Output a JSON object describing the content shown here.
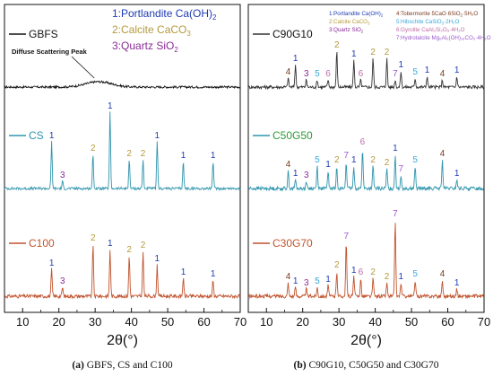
{
  "colors": {
    "1": "#1f3bb3",
    "2": "#b49a3c",
    "3": "#8a2b98",
    "4": "#7a3a1e",
    "5": "#3aa7d9",
    "6": "#c06aa8",
    "7": "#9b59d0"
  },
  "chart_data": [
    {
      "type": "line",
      "xlabel": "2θ(°)",
      "xlim": [
        5,
        70
      ],
      "xticks": [
        10,
        20,
        30,
        40,
        50,
        60,
        70
      ],
      "caption_bold": "(a)",
      "caption_text": " GBFS, CS and C100",
      "legend": [
        {
          "num": "1",
          "text": "1:Portlandite Ca(OH)",
          "sub": "2"
        },
        {
          "num": "2",
          "text": "2:Calcite CaCO",
          "sub": "3"
        },
        {
          "num": "3",
          "text": "3:Quartz SiO",
          "sub": "2"
        }
      ],
      "annotation": "Diffuse Scattering Peak",
      "series": [
        {
          "name": "GBFS",
          "color": "#111111",
          "name_color": "#111111",
          "baseline": 0.0,
          "hump": {
            "center": 31,
            "width": 5,
            "height": 6
          },
          "noise": 1.2,
          "peaks": []
        },
        {
          "name": "CS",
          "color": "#2f95ad",
          "name_color": "#2f95ad",
          "baseline": 0.0,
          "noise": 1.5,
          "peaks": [
            {
              "x": 18.0,
              "h": 52,
              "label": "1"
            },
            {
              "x": 21.0,
              "h": 8,
              "label": "3"
            },
            {
              "x": 29.4,
              "h": 38,
              "label": "2"
            },
            {
              "x": 34.1,
              "h": 85,
              "label": "1"
            },
            {
              "x": 39.4,
              "h": 32,
              "label": "2"
            },
            {
              "x": 43.2,
              "h": 32,
              "label": "2"
            },
            {
              "x": 47.1,
              "h": 52,
              "label": "1"
            },
            {
              "x": 54.3,
              "h": 30,
              "label": "1"
            },
            {
              "x": 62.5,
              "h": 30,
              "label": "1"
            }
          ]
        },
        {
          "name": "C100",
          "color": "#c0532d",
          "name_color": "#c0532d",
          "baseline": 0.0,
          "noise": 2.0,
          "peaks": [
            {
              "x": 18.0,
              "h": 30,
              "label": "1"
            },
            {
              "x": 21.0,
              "h": 10,
              "label": "3"
            },
            {
              "x": 29.4,
              "h": 58,
              "label": "2"
            },
            {
              "x": 34.1,
              "h": 52,
              "label": "1"
            },
            {
              "x": 39.4,
              "h": 45,
              "label": "2"
            },
            {
              "x": 43.2,
              "h": 50,
              "label": "2"
            },
            {
              "x": 47.1,
              "h": 35,
              "label": "1"
            },
            {
              "x": 54.3,
              "h": 20,
              "label": "1"
            },
            {
              "x": 62.5,
              "h": 18,
              "label": "1"
            }
          ]
        }
      ]
    },
    {
      "type": "line",
      "xlabel": "2θ(°)",
      "xlim": [
        5,
        70
      ],
      "xticks": [
        10,
        20,
        30,
        40,
        50,
        60,
        70
      ],
      "caption_bold": "(b)",
      "caption_text": " C90G10, C50G50 and C30G70",
      "legend_left": [
        {
          "num": "1",
          "text": "1:Portlandite Ca(OH)",
          "sub": "2"
        },
        {
          "num": "2",
          "text": "2:Calcite CaCO",
          "sub": "3"
        },
        {
          "num": "3",
          "text": "3:Quartz SiO",
          "sub": "2"
        }
      ],
      "legend_right": [
        {
          "num": "4",
          "text": "4:Tobermorite 5CaO·6SiO",
          "sub": "2",
          "tail": "·5H₂O"
        },
        {
          "num": "5",
          "text": "5:Hibschite CaSiO",
          "sub": "3",
          "tail": "·2H₂O"
        },
        {
          "num": "6",
          "text": "6:Gyrolite CaAl₂Si₂O₈·4H₂O",
          "sub": "",
          "tail": ""
        },
        {
          "num": "7",
          "text": "7:Hydrotalcite Mg₆Al₂(OH)₁₆CO₃·4H₂O",
          "sub": "",
          "tail": ""
        }
      ],
      "series": [
        {
          "name": "C90G10",
          "color": "#333333",
          "name_color": "#111111",
          "baseline": 0.0,
          "noise": 1.8,
          "peaks": [
            {
              "x": 16.0,
              "h": 10,
              "label": "4"
            },
            {
              "x": 18.0,
              "h": 25,
              "label": "1"
            },
            {
              "x": 21.0,
              "h": 8,
              "label": "3"
            },
            {
              "x": 24.0,
              "h": 8,
              "label": "5"
            },
            {
              "x": 27.0,
              "h": 8,
              "label": "6"
            },
            {
              "x": 29.4,
              "h": 40,
              "label": "2"
            },
            {
              "x": 34.1,
              "h": 30,
              "label": "1"
            },
            {
              "x": 36.0,
              "h": 8,
              "label": "6"
            },
            {
              "x": 39.4,
              "h": 32,
              "label": "2"
            },
            {
              "x": 43.2,
              "h": 32,
              "label": "2"
            },
            {
              "x": 45.5,
              "h": 8,
              "label": "7"
            },
            {
              "x": 47.1,
              "h": 18,
              "label": "1"
            },
            {
              "x": 51.0,
              "h": 10,
              "label": "5"
            },
            {
              "x": 54.3,
              "h": 12,
              "label": "1"
            },
            {
              "x": 58.5,
              "h": 8,
              "label": "4"
            },
            {
              "x": 62.5,
              "h": 12,
              "label": "1"
            }
          ]
        },
        {
          "name": "C50G50",
          "color": "#2f95ad",
          "name_color": "#2e9a3a",
          "baseline": 0.0,
          "noise": 2.0,
          "peaks": [
            {
              "x": 16.0,
              "h": 20,
              "label": "4"
            },
            {
              "x": 18.0,
              "h": 10,
              "label": "1"
            },
            {
              "x": 21.0,
              "h": 8,
              "label": "3"
            },
            {
              "x": 24.0,
              "h": 25,
              "label": "5"
            },
            {
              "x": 27.0,
              "h": 20,
              "label": "1"
            },
            {
              "x": 29.4,
              "h": 25,
              "label": "2"
            },
            {
              "x": 32.0,
              "h": 30,
              "label": "7"
            },
            {
              "x": 34.1,
              "h": 25,
              "label": "1"
            },
            {
              "x": 36.5,
              "h": 45,
              "label": "6"
            },
            {
              "x": 39.4,
              "h": 25,
              "label": "2"
            },
            {
              "x": 43.2,
              "h": 22,
              "label": "2"
            },
            {
              "x": 45.5,
              "h": 38,
              "label": "1"
            },
            {
              "x": 47.1,
              "h": 15,
              "label": "7"
            },
            {
              "x": 51.0,
              "h": 25,
              "label": "5"
            },
            {
              "x": 58.5,
              "h": 32,
              "label": "4"
            },
            {
              "x": 62.5,
              "h": 10,
              "label": "1"
            }
          ]
        },
        {
          "name": "C30G70",
          "color": "#c0532d",
          "name_color": "#c0532d",
          "baseline": 0.0,
          "noise": 2.0,
          "peaks": [
            {
              "x": 16.0,
              "h": 15,
              "label": "4"
            },
            {
              "x": 18.0,
              "h": 10,
              "label": "1"
            },
            {
              "x": 21.0,
              "h": 8,
              "label": "3"
            },
            {
              "x": 24.0,
              "h": 10,
              "label": "5"
            },
            {
              "x": 27.0,
              "h": 12,
              "label": "1"
            },
            {
              "x": 29.4,
              "h": 28,
              "label": "2"
            },
            {
              "x": 32.0,
              "h": 60,
              "label": "7"
            },
            {
              "x": 34.1,
              "h": 22,
              "label": "1"
            },
            {
              "x": 36.0,
              "h": 20,
              "label": "6"
            },
            {
              "x": 39.4,
              "h": 20,
              "label": "2"
            },
            {
              "x": 43.2,
              "h": 15,
              "label": "2"
            },
            {
              "x": 45.5,
              "h": 85,
              "label": "7"
            },
            {
              "x": 47.1,
              "h": 15,
              "label": "1"
            },
            {
              "x": 51.0,
              "h": 18,
              "label": "5"
            },
            {
              "x": 58.5,
              "h": 18,
              "label": "4"
            },
            {
              "x": 62.5,
              "h": 8,
              "label": "1"
            }
          ]
        }
      ]
    }
  ]
}
